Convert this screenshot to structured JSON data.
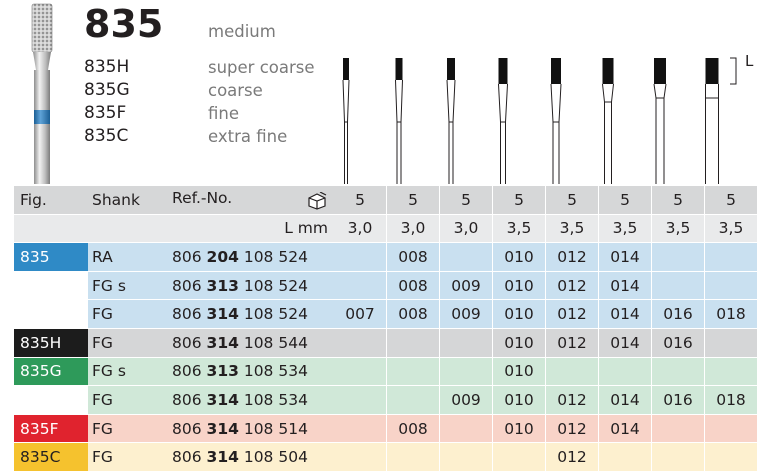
{
  "header": {
    "model": "835",
    "grade": "medium",
    "variants": [
      {
        "code": "835H",
        "grade": "super coarse"
      },
      {
        "code": "835G",
        "grade": "coarse"
      },
      {
        "code": "835F",
        "grade": "fine"
      },
      {
        "code": "835C",
        "grade": "extra fine"
      }
    ],
    "dimension_label": "L"
  },
  "table": {
    "col_fig": "Fig.",
    "col_shank": "Shank",
    "col_ref": "Ref.-No.",
    "l_label": "L mm",
    "sizes_row": [
      "5",
      "5",
      "5",
      "5",
      "5",
      "5",
      "5",
      "5"
    ],
    "lengths": [
      "3,0",
      "3,0",
      "3,0",
      "3,5",
      "3,5",
      "3,5",
      "3,5",
      "3,5"
    ],
    "rows": [
      {
        "fig": "835",
        "fig_color": "#2f8ac6",
        "shank": "RA",
        "ref_a": "806",
        "ref_b": "204",
        "ref_c": "108 524",
        "bg": "#c9e0f0",
        "cells": [
          "",
          "008",
          "",
          "010",
          "012",
          "014",
          "",
          ""
        ]
      },
      {
        "fig": "",
        "fig_color": "",
        "shank": "FG s",
        "ref_a": "806",
        "ref_b": "313",
        "ref_c": "108 524",
        "bg": "#c9e0f0",
        "cells": [
          "",
          "008",
          "009",
          "010",
          "012",
          "014",
          "",
          ""
        ]
      },
      {
        "fig": "",
        "fig_color": "",
        "shank": "FG",
        "ref_a": "806",
        "ref_b": "314",
        "ref_c": "108 524",
        "bg": "#c9e0f0",
        "cells": [
          "007",
          "008",
          "009",
          "010",
          "012",
          "014",
          "016",
          "018"
        ]
      },
      {
        "fig": "835H",
        "fig_color": "#1c1c1c",
        "shank": "FG",
        "ref_a": "806",
        "ref_b": "314",
        "ref_c": "108 544",
        "bg": "#d5d6d7",
        "cells": [
          "",
          "",
          "",
          "010",
          "012",
          "014",
          "016",
          ""
        ]
      },
      {
        "fig": "835G",
        "fig_color": "#2e9a5a",
        "shank": "FG s",
        "ref_a": "806",
        "ref_b": "313",
        "ref_c": "108 534",
        "bg": "#d0e8d8",
        "cells": [
          "",
          "",
          "",
          "010",
          "",
          "",
          "",
          ""
        ]
      },
      {
        "fig": "",
        "fig_color": "",
        "shank": "FG",
        "ref_a": "806",
        "ref_b": "314",
        "ref_c": "108 534",
        "bg": "#d0e8d8",
        "cells": [
          "",
          "",
          "009",
          "010",
          "012",
          "014",
          "016",
          "018"
        ]
      },
      {
        "fig": "835F",
        "fig_color": "#e0232e",
        "shank": "FG",
        "ref_a": "806",
        "ref_b": "314",
        "ref_c": "108 514",
        "bg": "#f8d3c8",
        "cells": [
          "",
          "008",
          "",
          "010",
          "012",
          "014",
          "",
          ""
        ]
      },
      {
        "fig": "835C",
        "fig_color": "#f5c22e",
        "shank": "FG",
        "ref_a": "806",
        "ref_b": "314",
        "ref_c": "108 504",
        "bg": "#fdf0cf",
        "cells": [
          "",
          "",
          "",
          "",
          "012",
          "",
          "",
          ""
        ]
      }
    ]
  }
}
